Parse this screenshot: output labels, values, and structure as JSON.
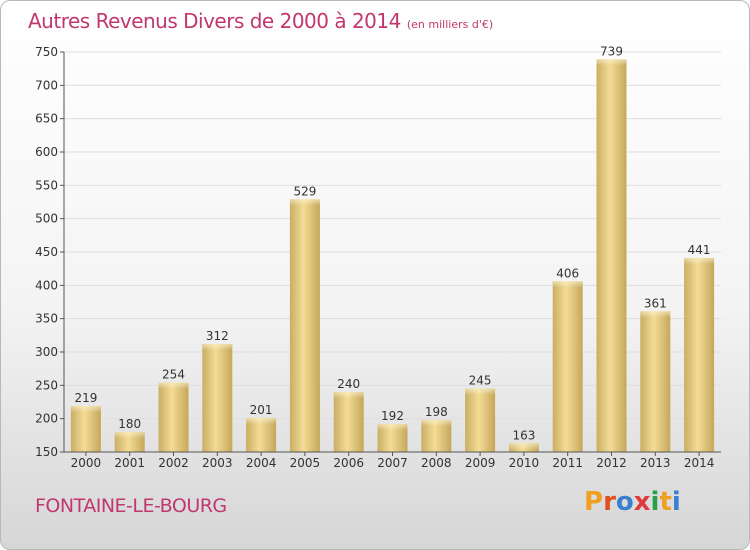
{
  "header": {
    "title": "Autres Revenus Divers de 2000 à 2014",
    "subtitle": "(en milliers d'€)"
  },
  "footer": {
    "place": "FONTAINE-LE-BOURG",
    "logo": {
      "text": "Proxiti",
      "colors": [
        "#f0a020",
        "#e05020",
        "#3a7fd0",
        "#e03a3a",
        "#2a9f4a",
        "#f0a020",
        "#3a7fd0"
      ]
    }
  },
  "colors": {
    "title": "#c0386e",
    "bar_light": "#f4dc96",
    "bar_dark": "#c9ae63",
    "axis_text": "#333333",
    "grid": "#dedede"
  },
  "chart_data": {
    "type": "bar",
    "title": "Autres Revenus Divers de 2000 à 2014",
    "subtitle": "(en milliers d'€)",
    "categories": [
      "2000",
      "2001",
      "2002",
      "2003",
      "2004",
      "2005",
      "2006",
      "2007",
      "2008",
      "2009",
      "2010",
      "2011",
      "2012",
      "2013",
      "2014"
    ],
    "values": [
      219,
      180,
      254,
      312,
      201,
      529,
      240,
      192,
      198,
      245,
      163,
      406,
      739,
      361,
      441
    ],
    "ylim": [
      150,
      750
    ],
    "yticks": [
      150,
      200,
      250,
      300,
      350,
      400,
      450,
      500,
      550,
      600,
      650,
      700,
      750
    ],
    "xlabel": "",
    "ylabel": "",
    "grid": true,
    "data_labels": true
  }
}
